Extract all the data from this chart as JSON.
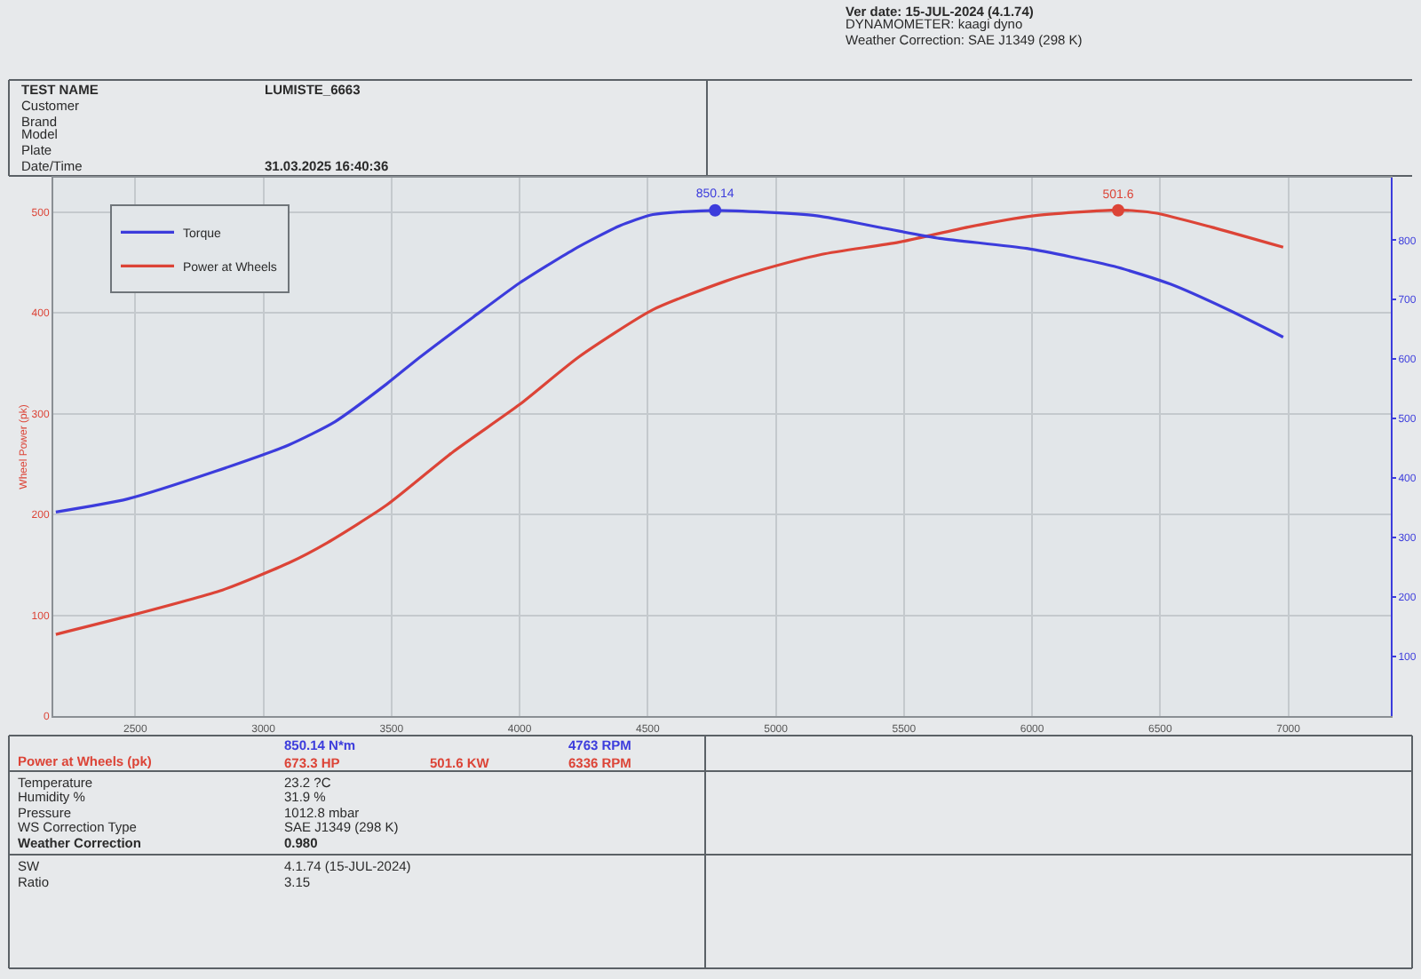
{
  "chart_data": {
    "type": "line",
    "ylabel": "Wheel Power (pk)",
    "xlim": [
      2180,
      7400
    ],
    "xticks": [
      2500,
      3000,
      3500,
      4000,
      4500,
      5000,
      5500,
      6000,
      6500,
      7000
    ],
    "ylim": [
      0,
      534
    ],
    "yticks": [
      0,
      100,
      200,
      300,
      400,
      500
    ],
    "y2lim": [
      0,
      905
    ],
    "y2ticks": [
      100,
      200,
      300,
      400,
      500,
      600,
      700,
      800
    ],
    "grid": true,
    "legend": "top left",
    "series": [
      {
        "name": "Torque",
        "color": "#3c3cdc",
        "axis": "y2",
        "x": [
          2190,
          2470,
          2810,
          3100,
          3280,
          3480,
          3610,
          3820,
          4000,
          4210,
          4390,
          4520,
          4763,
          5160,
          5410,
          5640,
          5980,
          6320,
          6540,
          6770,
          6980
        ],
        "values": [
          343,
          365,
          411,
          456,
          495,
          558,
          603,
          671,
          728,
          784,
          824,
          843,
          850,
          841,
          821,
          803,
          786,
          756,
          726,
          682,
          637
        ]
      },
      {
        "name": "Power at Wheels",
        "color": "#dc4437",
        "x": [
          2190,
          2470,
          2840,
          3100,
          3250,
          3480,
          3740,
          4000,
          4230,
          4520,
          4800,
          4950,
          5180,
          5480,
          5750,
          6000,
          6336,
          6480,
          6700,
          6980
        ],
        "values": [
          81,
          99,
          125,
          152,
          172,
          209,
          262,
          309,
          356,
          403,
          431,
          443,
          458,
          470,
          485,
          496,
          502,
          499,
          485,
          465
        ]
      },
      {
        "type": "scatter",
        "color": "#3c3cdc",
        "axis": "y2",
        "marker": "circle",
        "x": [
          4763
        ],
        "values": [
          850.14
        ],
        "value_labels": [
          "850.14"
        ]
      },
      {
        "type": "scatter",
        "color": "#dc4437",
        "marker": "circle",
        "x": [
          6336
        ],
        "values": [
          501.6
        ],
        "value_labels": [
          "501.6"
        ]
      }
    ],
    "annotations": [
      "Ver date: 15-JUL-2024 (4.1.74)",
      "DYNAMOMETER: kaagi dyno",
      "Weather Correction: SAE J1349 (298 K)",
      "TEST NAME",
      "LUMISTE_6663",
      "Customer",
      "Brand",
      "Model",
      "Plate",
      "Date/Time",
      "31.03.2025 16:40:36",
      "850.14 N*m",
      "4763 RPM",
      "Power at Wheels (pk)",
      "673.3 HP",
      "501.6 KW",
      "6336 RPM",
      "Temperature",
      "23.2 ?C",
      "Humidity %",
      "31.9 %",
      "Pressure",
      "1012.8 mbar",
      "WS Correction Type",
      "SAE J1349 (298 K)",
      "Weather Correction",
      "0.980",
      "SW",
      "4.1.74 (15-JUL-2024)",
      "Ratio",
      "3.15"
    ]
  }
}
